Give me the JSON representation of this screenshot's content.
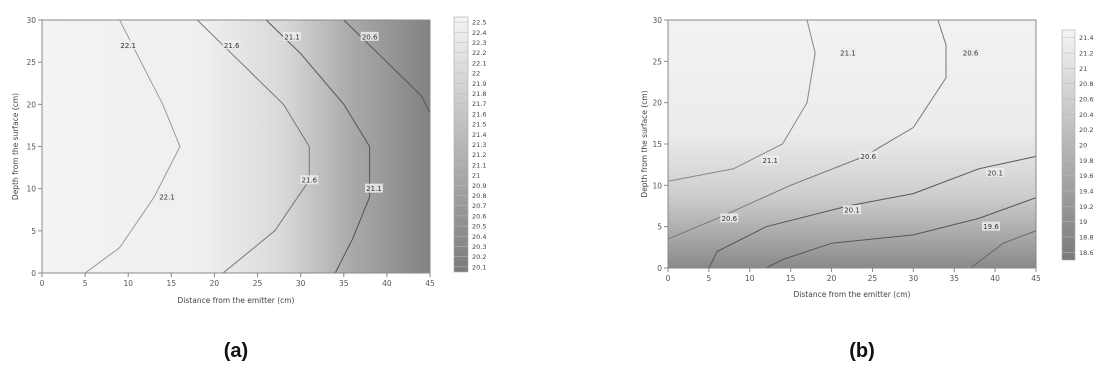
{
  "chart_data": [
    {
      "type": "heatmap",
      "subtype": "contour",
      "caption": "(a)",
      "xlabel": "Distance from the emitter (cm)",
      "ylabel": "Depth from the surface (cm)",
      "xlim": [
        0,
        45
      ],
      "ylim": [
        0,
        30
      ],
      "xticks": [
        "0",
        "5",
        "10",
        "15",
        "20",
        "25",
        "30",
        "35",
        "40",
        "45"
      ],
      "yticks": [
        "0",
        "5",
        "10",
        "15",
        "20",
        "25",
        "30"
      ],
      "colorbar_ticks": [
        "22.5",
        "22.4",
        "22.3",
        "22.2",
        "22.1",
        "22",
        "21.9",
        "21.8",
        "21.7",
        "21.6",
        "21.5",
        "21.4",
        "21.3",
        "21.2",
        "21.1",
        "21",
        "20.9",
        "20.8",
        "20.7",
        "20.6",
        "20.5",
        "20.4",
        "20.3",
        "20.2",
        "20.1"
      ],
      "colorbar_range": [
        20.1,
        22.5
      ],
      "colormap": "grayscale (light = high, dark = low)",
      "contour_labels": [
        {
          "label": "22.1",
          "x": 10,
          "y": 27
        },
        {
          "label": "22.1",
          "x": 14.5,
          "y": 9
        },
        {
          "label": "21.6",
          "x": 22,
          "y": 27
        },
        {
          "label": "21.6",
          "x": 31,
          "y": 11
        },
        {
          "label": "21.1",
          "x": 29,
          "y": 28
        },
        {
          "label": "21.1",
          "x": 38.5,
          "y": 10
        },
        {
          "label": "20.6",
          "x": 38,
          "y": 28
        }
      ]
    },
    {
      "type": "heatmap",
      "subtype": "contour",
      "caption": "(b)",
      "xlabel": "Distance from the emitter (cm)",
      "ylabel": "Depth from the surface (cm)",
      "xlim": [
        0,
        45
      ],
      "ylim": [
        0,
        30
      ],
      "xticks": [
        "0",
        "5",
        "10",
        "15",
        "20",
        "25",
        "30",
        "35",
        "40",
        "45"
      ],
      "yticks": [
        "0",
        "5",
        "10",
        "15",
        "20",
        "25",
        "30"
      ],
      "colorbar_ticks": [
        "21.4",
        "21.2",
        "21",
        "20.8",
        "20.6",
        "20.4",
        "20.2",
        "20",
        "19.8",
        "19.6",
        "19.4",
        "19.2",
        "19",
        "18.8",
        "18.6"
      ],
      "colorbar_range": [
        18.6,
        21.4
      ],
      "colormap": "grayscale (light = high, dark = low)",
      "contour_labels": [
        {
          "label": "21.1",
          "x": 22,
          "y": 26
        },
        {
          "label": "21.1",
          "x": 12.5,
          "y": 13
        },
        {
          "label": "20.6",
          "x": 37,
          "y": 26
        },
        {
          "label": "20.6",
          "x": 24.5,
          "y": 13.5
        },
        {
          "label": "20.6",
          "x": 7.5,
          "y": 6
        },
        {
          "label": "20.1",
          "x": 40,
          "y": 11.5
        },
        {
          "label": "20.1",
          "x": 22.5,
          "y": 7
        },
        {
          "label": "19.6",
          "x": 39.5,
          "y": 5
        }
      ]
    }
  ]
}
